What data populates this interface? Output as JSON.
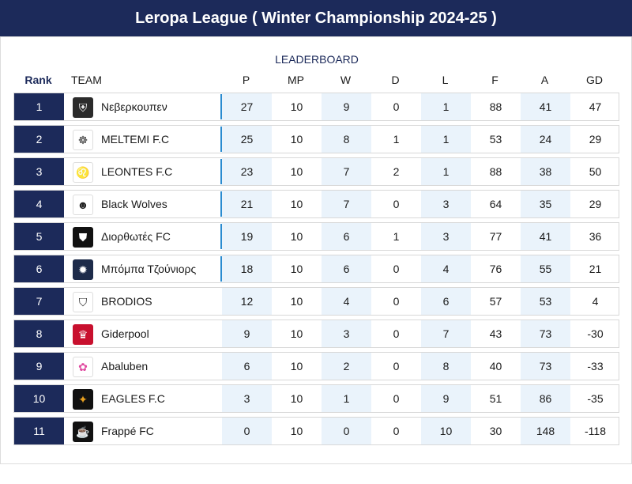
{
  "title": "Leropa League ( Winter Championship 2024-25 )",
  "board_caption": "LEADERBOARD",
  "columns": {
    "rank": "Rank",
    "team": "TEAM",
    "p": "P",
    "mp": "MP",
    "w": "W",
    "d": "D",
    "l": "L",
    "f": "F",
    "a": "A",
    "gd": "GD"
  },
  "colors": {
    "navy": "#1c2a5a",
    "shade": "#eaf3fb",
    "divider": "#2a8bd0"
  },
  "rows": [
    {
      "rank": "1",
      "team": "Νεβερκουπεν",
      "p": "27",
      "mp": "10",
      "w": "9",
      "d": "0",
      "l": "1",
      "f": "88",
      "a": "41",
      "gd": "47",
      "logo": "shield-crest-icon"
    },
    {
      "rank": "2",
      "team": "MELTEMI F.C",
      "p": "25",
      "mp": "10",
      "w": "8",
      "d": "1",
      "l": "1",
      "f": "53",
      "a": "24",
      "gd": "29",
      "logo": "ship-wheel-icon"
    },
    {
      "rank": "3",
      "team": "LEONTES F.C",
      "p": "23",
      "mp": "10",
      "w": "7",
      "d": "2",
      "l": "1",
      "f": "88",
      "a": "38",
      "gd": "50",
      "logo": "lion-icon"
    },
    {
      "rank": "4",
      "team": "Black Wolves",
      "p": "21",
      "mp": "10",
      "w": "7",
      "d": "0",
      "l": "3",
      "f": "64",
      "a": "35",
      "gd": "29",
      "logo": "wolf-icon"
    },
    {
      "rank": "5",
      "team": "Διορθωτές FC",
      "p": "19",
      "mp": "10",
      "w": "6",
      "d": "1",
      "l": "3",
      "f": "77",
      "a": "41",
      "gd": "36",
      "logo": "black-crest-icon"
    },
    {
      "rank": "6",
      "team": "Μπόμπα Τζούνιορς",
      "p": "18",
      "mp": "10",
      "w": "6",
      "d": "0",
      "l": "4",
      "f": "76",
      "a": "55",
      "gd": "21",
      "logo": "bomb-icon"
    },
    {
      "rank": "7",
      "team": "BRODIOS",
      "p": "12",
      "mp": "10",
      "w": "4",
      "d": "0",
      "l": "6",
      "f": "57",
      "a": "53",
      "gd": "4",
      "logo": "striped-shield-icon"
    },
    {
      "rank": "8",
      "team": "Giderpool",
      "p": "9",
      "mp": "10",
      "w": "3",
      "d": "0",
      "l": "7",
      "f": "43",
      "a": "73",
      "gd": "-30",
      "logo": "liver-bird-icon"
    },
    {
      "rank": "9",
      "team": "Abaluben",
      "p": "6",
      "mp": "10",
      "w": "2",
      "d": "0",
      "l": "8",
      "f": "40",
      "a": "73",
      "gd": "-33",
      "logo": "pink-mascot-icon"
    },
    {
      "rank": "10",
      "team": "EAGLES F.C",
      "p": "3",
      "mp": "10",
      "w": "1",
      "d": "0",
      "l": "9",
      "f": "51",
      "a": "86",
      "gd": "-35",
      "logo": "eagle-icon"
    },
    {
      "rank": "11",
      "team": "Frappé FC",
      "p": "0",
      "mp": "10",
      "w": "0",
      "d": "0",
      "l": "10",
      "f": "30",
      "a": "148",
      "gd": "-118",
      "logo": "coffee-icon"
    }
  ]
}
